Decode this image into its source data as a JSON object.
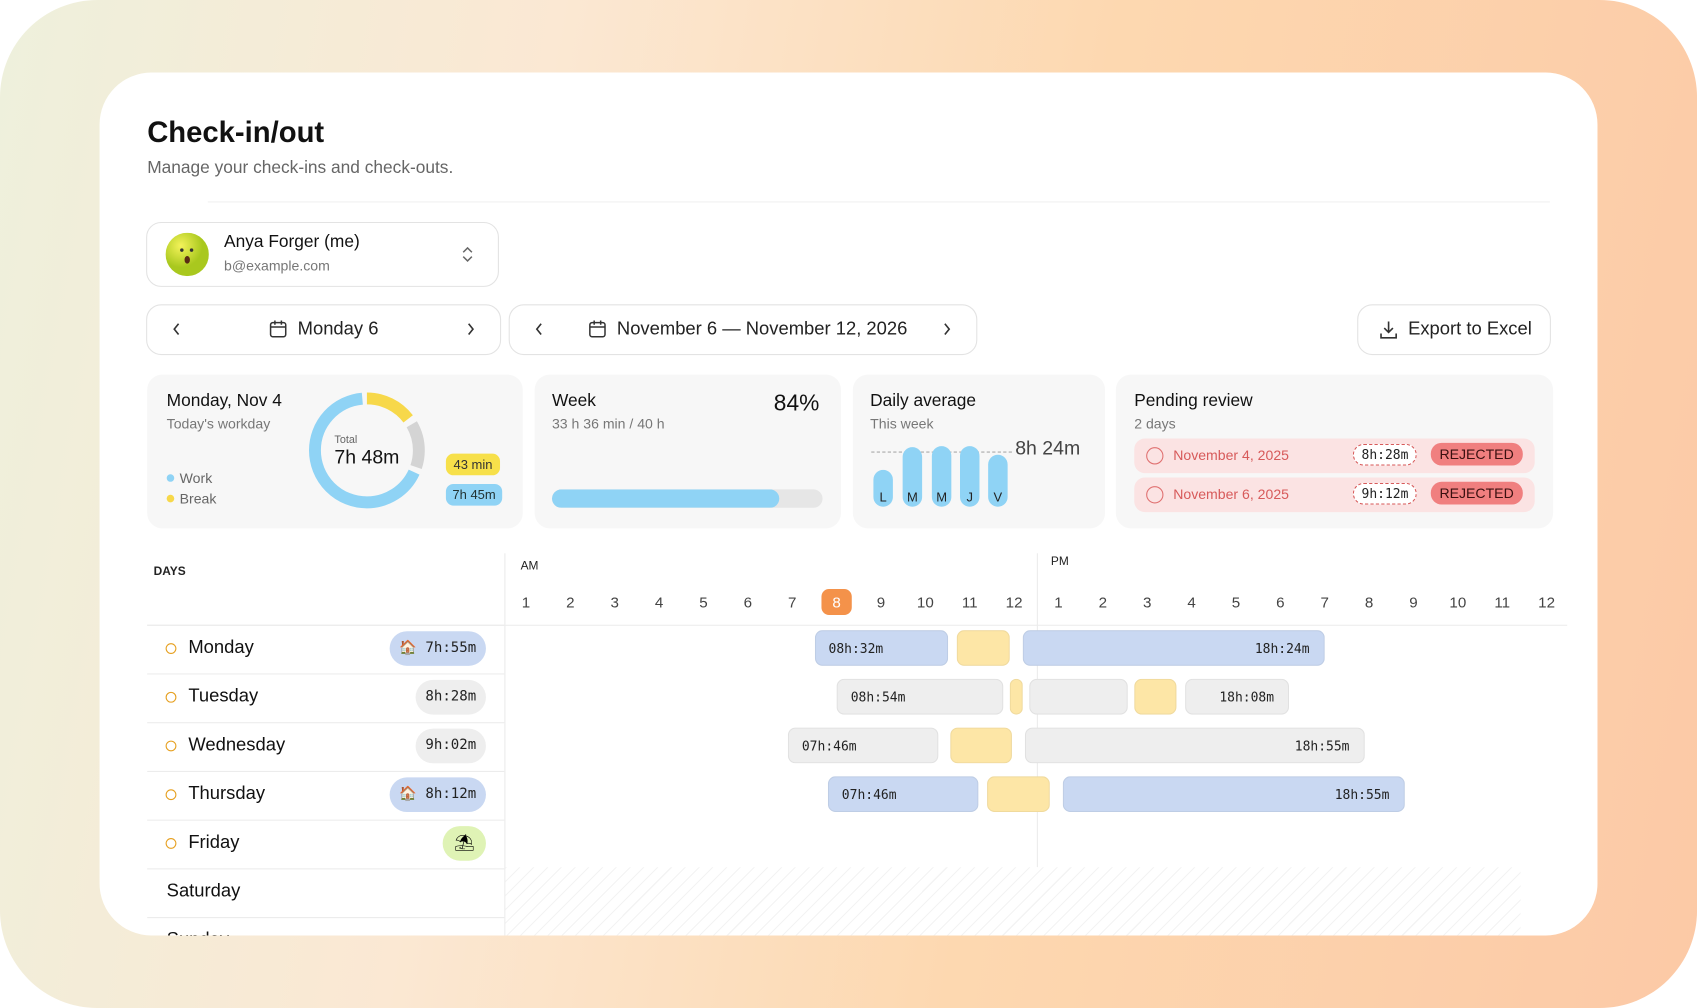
{
  "header": {
    "title": "Check-in/out",
    "subtitle": "Manage your check-ins and check-outs."
  },
  "user": {
    "name": "Anya Forger (me)",
    "email": "b@example.com"
  },
  "day_nav": {
    "label": "Monday 6"
  },
  "week_nav": {
    "label": "November 6 — November 12, 2026"
  },
  "export": {
    "label": "Export to Excel"
  },
  "cards": {
    "today": {
      "title": "Monday, Nov 4",
      "subtitle": "Today's workday",
      "legend": [
        "Work",
        "Break"
      ],
      "total_label": "Total",
      "total": "7h 48m",
      "break_badge": "43 min",
      "work_badge": "7h 45m"
    },
    "week": {
      "title": "Week",
      "subtitle": "33 h 36 min / 40 h",
      "percent": {
        "value": 84,
        "label": "84%"
      }
    },
    "daily": {
      "title": "Daily average",
      "subtitle": "This week",
      "average": "8h 24m",
      "days": [
        "L",
        "M",
        "M",
        "J",
        "V"
      ]
    },
    "pending": {
      "title": "Pending review",
      "subtitle": "2 days",
      "items": [
        {
          "date": "November 4, 2025",
          "duration": "8h:28m",
          "status": "REJECTED"
        },
        {
          "date": "November 6, 2025",
          "duration": "9h:12m",
          "status": "REJECTED"
        }
      ]
    }
  },
  "timeline": {
    "days_label": "DAYS",
    "am_label": "AM",
    "pm_label": "PM",
    "am_hours": [
      1,
      2,
      3,
      4,
      5,
      6,
      7,
      8,
      9,
      10,
      11,
      12
    ],
    "pm_hours": [
      1,
      2,
      3,
      4,
      5,
      6,
      7,
      8,
      9,
      10,
      11,
      12
    ],
    "current_hour": 8,
    "rows": [
      {
        "day": "Monday",
        "badge": "7h:55m",
        "badge_color": "#c9d8f2",
        "segments": [
          {
            "start": 7.5,
            "end": 10.5,
            "color": "#c9d8f2",
            "label": "08h:32m"
          },
          {
            "start": 10.7,
            "end": 11.9,
            "color": "#fde6a6"
          },
          {
            "start": 12.2,
            "end": 19,
            "color": "#c9d8f2",
            "label": "18h:24m"
          }
        ]
      },
      {
        "day": "Tuesday",
        "badge": "8h:28m",
        "badge_color": "#eeeeee",
        "segments": [
          {
            "start": 8,
            "end": 11.75,
            "color": "#eeeeee",
            "label": "08h:54m"
          },
          {
            "start": 11.9,
            "end": 12.2,
            "color": "#fde6a6"
          },
          {
            "start": 12.35,
            "end": 14.55,
            "color": "#eeeeee"
          },
          {
            "start": 14.7,
            "end": 15.65,
            "color": "#fde6a6"
          },
          {
            "start": 15.85,
            "end": 18.2,
            "color": "#eeeeee",
            "label": "18h:08m"
          }
        ]
      },
      {
        "day": "Wednesday",
        "badge": "9h:02m",
        "badge_color": "#eeeeee",
        "segments": [
          {
            "start": 6.9,
            "end": 10.3,
            "color": "#eeeeee",
            "label": "07h:46m"
          },
          {
            "start": 10.55,
            "end": 11.95,
            "color": "#fde6a6"
          },
          {
            "start": 12.25,
            "end": 19.9,
            "color": "#eeeeee",
            "label": "18h:55m"
          }
        ]
      },
      {
        "day": "Thursday",
        "badge": "8h:12m",
        "badge_color": "#c9d8f2",
        "segments": [
          {
            "start": 7.8,
            "end": 11.2,
            "color": "#c9d8f2",
            "label": "07h:46m"
          },
          {
            "start": 11.4,
            "end": 12.8,
            "color": "#fde6a6"
          },
          {
            "start": 13.1,
            "end": 20.8,
            "color": "#c9d8f2",
            "label": "18h:55m"
          }
        ]
      },
      {
        "day": "Friday",
        "segments": []
      },
      {
        "day": "Saturday",
        "segments": []
      },
      {
        "day": "Sunday",
        "segments": []
      }
    ]
  }
}
